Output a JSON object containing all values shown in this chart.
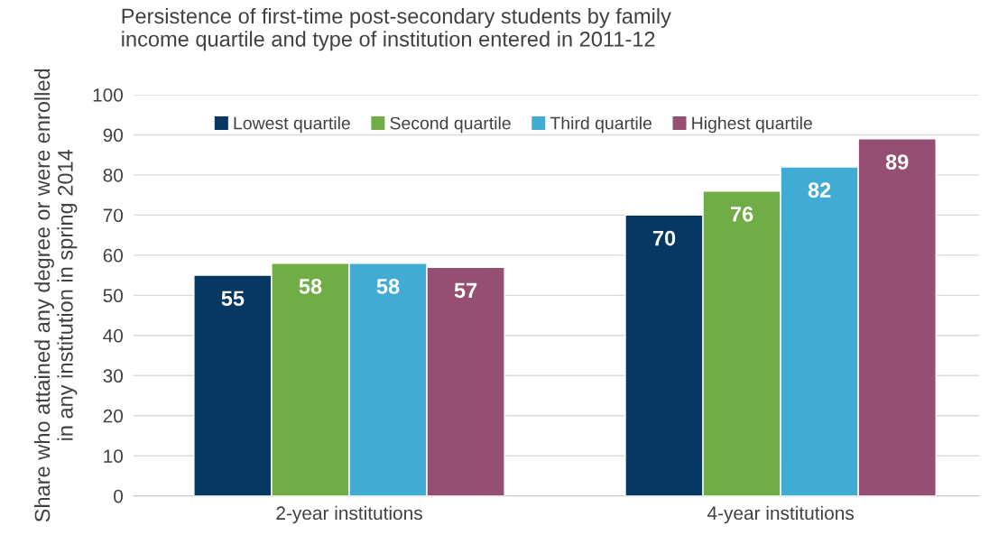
{
  "chart_data": {
    "type": "bar",
    "title": "Persistence of first-time post-secondary students by family\nincome quartile and type of institution entered in 2011-12",
    "ylabel": "Share who attained any degree or were enrolled\nin any institution in spring 2014",
    "categories": [
      "2-year institutions",
      "4-year institutions"
    ],
    "series": [
      {
        "name": "Lowest quartile",
        "color": "#073763",
        "values": [
          55,
          70
        ]
      },
      {
        "name": "Second quartile",
        "color": "#70ad47",
        "values": [
          58,
          76
        ]
      },
      {
        "name": "Third quartile",
        "color": "#41acd3",
        "values": [
          58,
          82
        ]
      },
      {
        "name": "Highest quartile",
        "color": "#954f72",
        "values": [
          57,
          89
        ]
      }
    ],
    "ylim": [
      0,
      100
    ],
    "yticks": [
      0,
      10,
      20,
      30,
      40,
      50,
      60,
      70,
      80,
      90,
      100
    ],
    "grid": "y",
    "legend": "top",
    "data_labels": true
  }
}
